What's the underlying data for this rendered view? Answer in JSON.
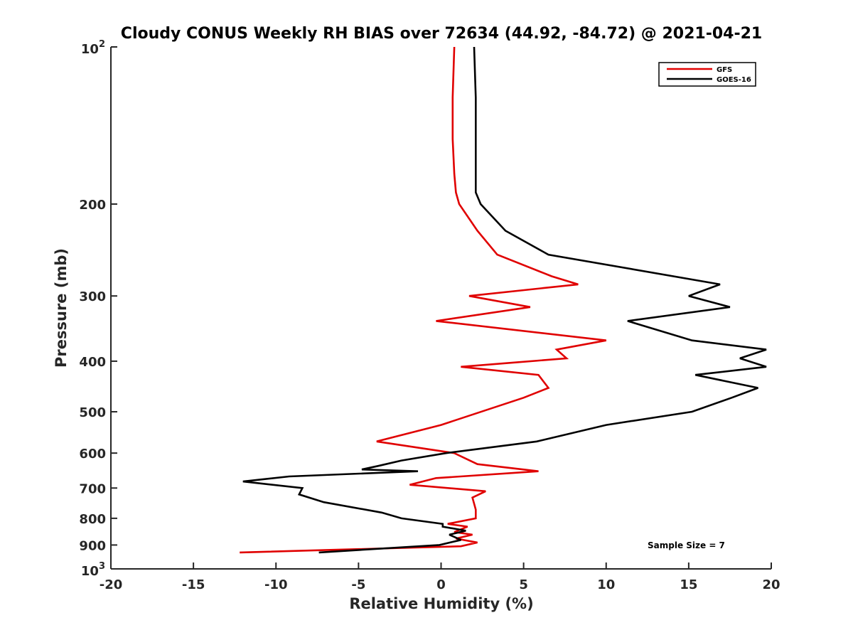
{
  "chart_data": {
    "type": "line",
    "title": "Cloudy CONUS Weekly RH BIAS over 72634 (44.92, -84.72) @ 2021-04-21",
    "xlabel": "Relative Humidity (%)",
    "ylabel": "Pressure (mb)",
    "xlim": [
      -20,
      20
    ],
    "ylim": [
      100,
      1000
    ],
    "y_scale": "log",
    "y_reversed": true,
    "grid": false,
    "legend_position": "top-right",
    "x_ticks": [
      "-20",
      "-15",
      "-10",
      "-5",
      "0",
      "5",
      "10",
      "15",
      "20"
    ],
    "y_ticks": [
      {
        "value": 100,
        "base": "10",
        "exp": "2"
      },
      {
        "value": 200,
        "label": "200"
      },
      {
        "value": 300,
        "label": "300"
      },
      {
        "value": 400,
        "label": "400"
      },
      {
        "value": 500,
        "label": "500"
      },
      {
        "value": 600,
        "label": "600"
      },
      {
        "value": 700,
        "label": "700"
      },
      {
        "value": 800,
        "label": "800"
      },
      {
        "value": 900,
        "label": "900"
      },
      {
        "value": 1000,
        "base": "10",
        "exp": "3"
      }
    ],
    "annotation": "Sample Size = 7",
    "series": [
      {
        "name": "GFS",
        "color": "#e00000",
        "points": [
          [
            0.8,
            100
          ],
          [
            0.7,
            125
          ],
          [
            0.7,
            150
          ],
          [
            0.8,
            175
          ],
          [
            0.9,
            190
          ],
          [
            1.1,
            200
          ],
          [
            2.2,
            225
          ],
          [
            3.4,
            250
          ],
          [
            6.7,
            275
          ],
          [
            8.3,
            285
          ],
          [
            1.7,
            300
          ],
          [
            5.4,
            315
          ],
          [
            -0.3,
            335
          ],
          [
            10.0,
            365
          ],
          [
            7.0,
            380
          ],
          [
            7.6,
            395
          ],
          [
            1.2,
            410
          ],
          [
            5.9,
            425
          ],
          [
            6.5,
            450
          ],
          [
            5.0,
            470
          ],
          [
            0.0,
            530
          ],
          [
            -3.9,
            570
          ],
          [
            0.8,
            600
          ],
          [
            2.2,
            630
          ],
          [
            5.9,
            650
          ],
          [
            -0.3,
            670
          ],
          [
            -1.9,
            690
          ],
          [
            2.7,
            710
          ],
          [
            1.9,
            730
          ],
          [
            2.0,
            750
          ],
          [
            2.1,
            770
          ],
          [
            2.1,
            800
          ],
          [
            0.4,
            820
          ],
          [
            1.6,
            830
          ],
          [
            0.8,
            850
          ],
          [
            1.9,
            860
          ],
          [
            0.9,
            875
          ],
          [
            2.2,
            890
          ],
          [
            1.2,
            905
          ],
          [
            -12.2,
            930
          ]
        ]
      },
      {
        "name": "GOES-16",
        "color": "#000000",
        "points": [
          [
            2.0,
            100
          ],
          [
            2.1,
            125
          ],
          [
            2.1,
            150
          ],
          [
            2.1,
            175
          ],
          [
            2.1,
            190
          ],
          [
            2.4,
            200
          ],
          [
            3.9,
            225
          ],
          [
            6.5,
            250
          ],
          [
            16.9,
            285
          ],
          [
            15.0,
            300
          ],
          [
            17.5,
            315
          ],
          [
            11.3,
            335
          ],
          [
            15.2,
            365
          ],
          [
            19.7,
            380
          ],
          [
            18.1,
            395
          ],
          [
            19.7,
            410
          ],
          [
            15.4,
            425
          ],
          [
            19.2,
            450
          ],
          [
            17.6,
            470
          ],
          [
            15.2,
            500
          ],
          [
            10.0,
            530
          ],
          [
            5.8,
            570
          ],
          [
            0.3,
            600
          ],
          [
            -2.4,
            620
          ],
          [
            -3.8,
            635
          ],
          [
            -4.8,
            645
          ],
          [
            -1.4,
            650
          ],
          [
            -9.2,
            665
          ],
          [
            -12.0,
            680
          ],
          [
            -8.4,
            700
          ],
          [
            -8.6,
            720
          ],
          [
            -7.1,
            745
          ],
          [
            -3.6,
            780
          ],
          [
            -2.4,
            800
          ],
          [
            0.1,
            820
          ],
          [
            0.1,
            830
          ],
          [
            1.5,
            845
          ],
          [
            0.5,
            860
          ],
          [
            1.2,
            880
          ],
          [
            -0.1,
            900
          ],
          [
            -7.4,
            930
          ]
        ]
      }
    ]
  }
}
